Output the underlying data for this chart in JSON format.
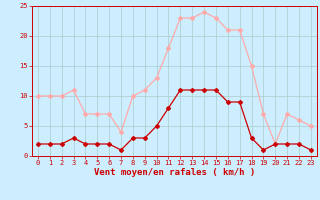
{
  "hours": [
    0,
    1,
    2,
    3,
    4,
    5,
    6,
    7,
    8,
    9,
    10,
    11,
    12,
    13,
    14,
    15,
    16,
    17,
    18,
    19,
    20,
    21,
    22,
    23
  ],
  "wind_avg": [
    2,
    2,
    2,
    3,
    2,
    2,
    2,
    1,
    3,
    3,
    5,
    8,
    11,
    11,
    11,
    11,
    9,
    9,
    3,
    1,
    2,
    2,
    2,
    1
  ],
  "wind_gust": [
    10,
    10,
    10,
    11,
    7,
    7,
    7,
    4,
    10,
    11,
    13,
    18,
    23,
    23,
    24,
    23,
    21,
    21,
    15,
    7,
    2,
    7,
    6,
    5
  ],
  "color_avg": "#cc0000",
  "color_gust": "#ffaaaa",
  "bg_color": "#cceeff",
  "grid_color": "#aacccc",
  "xlabel": "Vent moyen/en rafales ( km/h )",
  "ylim": [
    0,
    25
  ],
  "yticks": [
    0,
    5,
    10,
    15,
    20,
    25
  ],
  "xticks": [
    0,
    1,
    2,
    3,
    4,
    5,
    6,
    7,
    8,
    9,
    10,
    11,
    12,
    13,
    14,
    15,
    16,
    17,
    18,
    19,
    20,
    21,
    22,
    23
  ],
  "tick_color": "#cc0000",
  "label_fontsize": 5.0,
  "xlabel_fontsize": 6.5
}
